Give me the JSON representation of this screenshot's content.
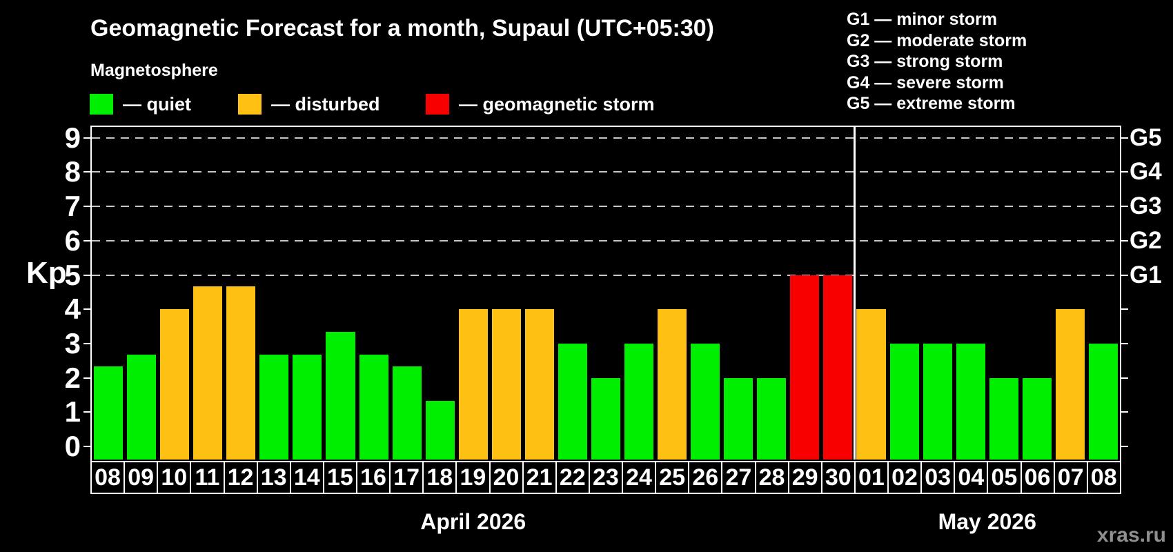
{
  "title": "Geomagnetic Forecast for a month, Supaul (UTC+05:30)",
  "subtitle": "Magnetosphere",
  "legend": [
    {
      "key": "quiet",
      "label": "— quiet"
    },
    {
      "key": "disturbed",
      "label": "— disturbed"
    },
    {
      "key": "storm",
      "label": "— geomagnetic storm"
    }
  ],
  "storm_scale": [
    "G1 — minor storm",
    "G2 — moderate storm",
    "G3 — strong storm",
    "G4 — severe storm",
    "G5 — extreme storm"
  ],
  "watermark": "xras.ru",
  "colors": {
    "quiet": "#00ef00",
    "disturbed": "#fdc013",
    "storm": "#f90000",
    "axis": "#ffffff",
    "grid": "#c8c8c8",
    "background": "#000000",
    "watermark": "#8f8f8f"
  },
  "chart_data": {
    "type": "bar",
    "ylabel": "Kp",
    "ylim": [
      0,
      9
    ],
    "yticks": [
      0,
      1,
      2,
      3,
      4,
      5,
      6,
      7,
      8,
      9
    ],
    "grid_kp": [
      5,
      6,
      7,
      8,
      9
    ],
    "right_axis": [
      {
        "kp": 5,
        "label": "G1"
      },
      {
        "kp": 6,
        "label": "G2"
      },
      {
        "kp": 7,
        "label": "G3"
      },
      {
        "kp": 8,
        "label": "G4"
      },
      {
        "kp": 9,
        "label": "G5"
      }
    ],
    "legend_position": "top",
    "grid": "dashed horizontal at Kp 5-9",
    "months": [
      {
        "label": "April 2026",
        "days": [
          {
            "day": "08",
            "kp": 2.33,
            "status": "quiet"
          },
          {
            "day": "09",
            "kp": 2.67,
            "status": "quiet"
          },
          {
            "day": "10",
            "kp": 4,
            "status": "disturbed"
          },
          {
            "day": "11",
            "kp": 4.67,
            "status": "disturbed"
          },
          {
            "day": "12",
            "kp": 4.67,
            "status": "disturbed"
          },
          {
            "day": "13",
            "kp": 2.67,
            "status": "quiet"
          },
          {
            "day": "14",
            "kp": 2.67,
            "status": "quiet"
          },
          {
            "day": "15",
            "kp": 3.33,
            "status": "quiet"
          },
          {
            "day": "16",
            "kp": 2.67,
            "status": "quiet"
          },
          {
            "day": "17",
            "kp": 2.33,
            "status": "quiet"
          },
          {
            "day": "18",
            "kp": 1.33,
            "status": "quiet"
          },
          {
            "day": "19",
            "kp": 4,
            "status": "disturbed"
          },
          {
            "day": "20",
            "kp": 4,
            "status": "disturbed"
          },
          {
            "day": "21",
            "kp": 4,
            "status": "disturbed"
          },
          {
            "day": "22",
            "kp": 3,
            "status": "quiet"
          },
          {
            "day": "23",
            "kp": 2,
            "status": "quiet"
          },
          {
            "day": "24",
            "kp": 3,
            "status": "quiet"
          },
          {
            "day": "25",
            "kp": 4,
            "status": "disturbed"
          },
          {
            "day": "26",
            "kp": 3,
            "status": "quiet"
          },
          {
            "day": "27",
            "kp": 2,
            "status": "quiet"
          },
          {
            "day": "28",
            "kp": 2,
            "status": "quiet"
          },
          {
            "day": "29",
            "kp": 5,
            "status": "storm"
          },
          {
            "day": "30",
            "kp": 5,
            "status": "storm"
          }
        ]
      },
      {
        "label": "May 2026",
        "days": [
          {
            "day": "01",
            "kp": 4,
            "status": "disturbed"
          },
          {
            "day": "02",
            "kp": 3,
            "status": "quiet"
          },
          {
            "day": "03",
            "kp": 3,
            "status": "quiet"
          },
          {
            "day": "04",
            "kp": 3,
            "status": "quiet"
          },
          {
            "day": "05",
            "kp": 2,
            "status": "quiet"
          },
          {
            "day": "06",
            "kp": 2,
            "status": "quiet"
          },
          {
            "day": "07",
            "kp": 4,
            "status": "disturbed"
          },
          {
            "day": "08",
            "kp": 3,
            "status": "quiet"
          }
        ]
      }
    ]
  }
}
